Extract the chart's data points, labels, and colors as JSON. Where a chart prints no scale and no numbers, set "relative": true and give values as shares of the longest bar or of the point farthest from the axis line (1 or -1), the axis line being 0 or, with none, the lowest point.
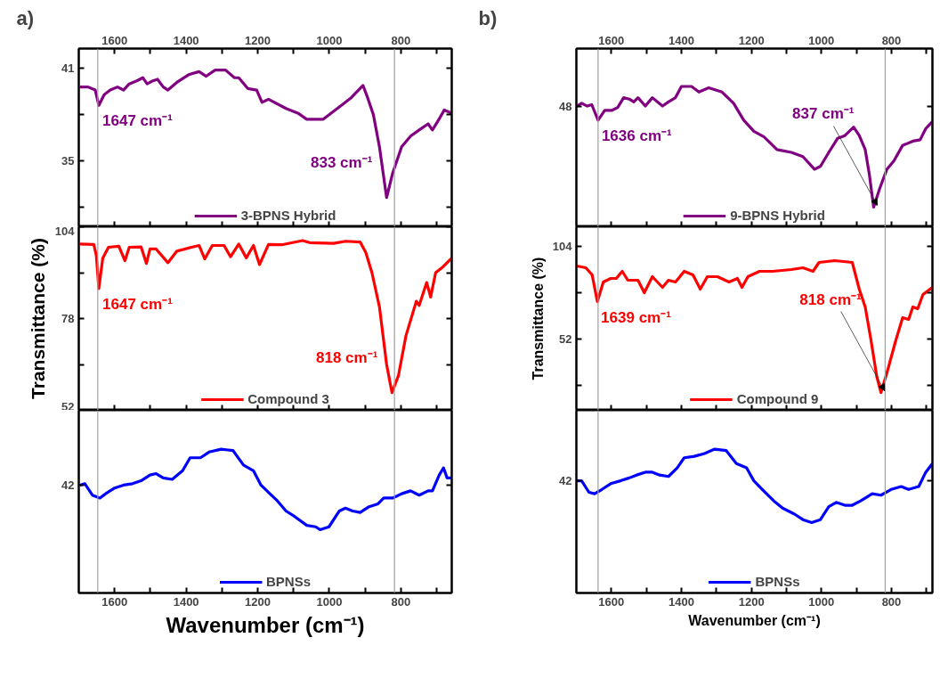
{
  "chart_data": [
    {
      "type": "line",
      "title": "a)",
      "x": [
        1697,
        1674,
        1654,
        1644,
        1629,
        1612,
        1592,
        1575,
        1559,
        1538,
        1521,
        1509,
        1493,
        1480,
        1464,
        1451,
        1426,
        1393,
        1364,
        1344,
        1319,
        1290,
        1265,
        1253,
        1228,
        1203,
        1188,
        1170,
        1121,
        1088,
        1063,
        1017,
        972,
        939,
        906,
        893,
        877,
        860,
        840,
        823,
        798,
        773,
        749,
        724,
        712,
        691,
        679,
        658
      ],
      "series": [
        {
          "name": "3-BPNS Hybrid",
          "color": "#800080",
          "values": [
            39.8,
            39.8,
            39.6,
            38.6,
            39.3,
            39.6,
            39.8,
            39.6,
            40.0,
            40.2,
            40.4,
            40.0,
            40.2,
            40.3,
            39.8,
            39.6,
            40.1,
            40.6,
            40.8,
            40.5,
            40.9,
            40.9,
            40.4,
            40.4,
            39.7,
            39.6,
            38.8,
            39.0,
            38.4,
            38.1,
            37.7,
            37.7,
            38.5,
            39.1,
            39.9,
            39.1,
            38.0,
            35.9,
            32.6,
            34.2,
            35.9,
            36.6,
            37.0,
            37.4,
            37.0,
            37.8,
            38.3,
            38.1
          ]
        }
      ],
      "xlim": [
        1700,
        658
      ],
      "ylim": [
        30.7,
        42.3
      ],
      "xticks": [
        1600,
        {
          "value": 1500,
          "label": null
        },
        1400,
        {
          "value": 1300,
          "label": null
        },
        1200,
        {
          "value": 1100,
          "label": null
        },
        1000,
        {
          "value": 900,
          "label": null
        },
        800,
        {
          "value": 700,
          "label": null
        }
      ],
      "x2lim": [
        1700,
        658
      ],
      "x2ticks": [
        1600,
        {
          "value": 1500,
          "label": null
        },
        1400,
        {
          "value": 1300,
          "label": null
        },
        1200,
        {
          "value": 1100,
          "label": null
        },
        1000,
        {
          "value": 900,
          "label": null
        },
        800,
        {
          "value": 700,
          "label": null
        }
      ],
      "yticks": [
        41,
        {
          "value": 38,
          "label": null
        },
        35,
        {
          "value": 32,
          "label": null
        }
      ],
      "tick_labels": "y",
      "legend": "bottom",
      "ref_lines": [
        {
          "axis": "x",
          "value": 1647,
          "color": "#a0a0a0"
        },
        {
          "axis": "x",
          "value": 818,
          "color": "#a0a0a0"
        }
      ],
      "annotations": [
        {
          "text": "1647 cm⁻¹",
          "x": 1644,
          "y": 38.6
        },
        {
          "text": "833 cm⁻¹",
          "x": 840,
          "y": 32.6
        }
      ]
    },
    {
      "type": "line",
      "ylabel": "Transmittance (%)",
      "x": [
        1697,
        1658,
        1651,
        1644,
        1633,
        1617,
        1588,
        1571,
        1559,
        1526,
        1511,
        1501,
        1484,
        1451,
        1426,
        1385,
        1364,
        1348,
        1327,
        1294,
        1276,
        1253,
        1232,
        1212,
        1195,
        1170,
        1133,
        1075,
        1055,
        988,
        955,
        914,
        898,
        881,
        860,
        840,
        825,
        807,
        786,
        757,
        749,
        728,
        717,
        703,
        683,
        658
      ],
      "series": [
        {
          "name": "Compound 3",
          "color": "#ff0000",
          "values": [
            99.1,
            99.0,
            95.9,
            86.5,
            95.1,
            98.2,
            98.5,
            94.4,
            98.2,
            98.3,
            93.6,
            97.7,
            97.7,
            93.8,
            97.1,
            98.2,
            98.7,
            94.9,
            98.7,
            98.7,
            95.5,
            99.1,
            95.2,
            98.7,
            93.3,
            99.0,
            98.9,
            100.1,
            99.5,
            99.3,
            99.9,
            99.7,
            96.7,
            91.0,
            81.3,
            65.0,
            57.0,
            61.8,
            73.1,
            82.9,
            81.7,
            88.2,
            84.1,
            91.0,
            92.6,
            95.1
          ]
        }
      ],
      "xlim": [
        1700,
        658
      ],
      "ylim": [
        52,
        104
      ],
      "xticks": [
        1600,
        {
          "value": 1500,
          "label": null
        },
        1400,
        {
          "value": 1300,
          "label": null
        },
        1200,
        {
          "value": 1100,
          "label": null
        },
        1000,
        {
          "value": 900,
          "label": null
        },
        800,
        {
          "value": 700,
          "label": null
        }
      ],
      "yticks": [
        104,
        {
          "value": 91,
          "label": null
        },
        78,
        {
          "value": 65,
          "label": null
        },
        52
      ],
      "tick_labels": "y",
      "legend": "bottom",
      "ref_lines": [
        {
          "axis": "x",
          "value": 1647,
          "color": "#a0a0a0"
        },
        {
          "axis": "x",
          "value": 818,
          "color": "#a0a0a0"
        }
      ],
      "annotations": [
        {
          "text": "1647 cm⁻¹",
          "x": 1644,
          "y": 86.5
        },
        {
          "text": "818 cm⁻¹",
          "x": 825,
          "y": 57.0
        }
      ]
    },
    {
      "type": "line",
      "relative": true,
      "xlabel": "Wavenumber (cm⁻¹)",
      "x": [
        1697,
        1683,
        1662,
        1641,
        1625,
        1600,
        1575,
        1550,
        1526,
        1501,
        1484,
        1464,
        1439,
        1410,
        1389,
        1360,
        1336,
        1302,
        1269,
        1240,
        1212,
        1191,
        1166,
        1145,
        1121,
        1096,
        1063,
        1038,
        1026,
        1001,
        972,
        955,
        935,
        914,
        889,
        864,
        848,
        823,
        798,
        773,
        749,
        724,
        712,
        693,
        681,
        671,
        658
      ],
      "series": [
        {
          "name": "BPNSs",
          "color": "#0000ff",
          "values": [
            0.75,
            0.76,
            0.68,
            0.66,
            0.69,
            0.73,
            0.75,
            0.76,
            0.78,
            0.82,
            0.83,
            0.8,
            0.79,
            0.85,
            0.94,
            0.94,
            0.98,
            1,
            0.99,
            0.89,
            0.85,
            0.75,
            0.69,
            0.64,
            0.57,
            0.53,
            0.47,
            0.46,
            0.44,
            0.46,
            0.57,
            0.59,
            0.57,
            0.56,
            0.6,
            0.62,
            0.66,
            0.66,
            0.69,
            0.71,
            0.68,
            0.71,
            0.71,
            0.82,
            0.87,
            0.8,
            0.8
          ]
        }
      ],
      "xlim": [
        1700,
        658
      ],
      "xticks": [
        1600,
        {
          "value": 1500,
          "label": null
        },
        1400,
        {
          "value": 1300,
          "label": null
        },
        1200,
        {
          "value": 1100,
          "label": null
        },
        1000,
        {
          "value": 900,
          "label": null
        },
        800,
        {
          "value": 700,
          "label": null
        }
      ],
      "legend": "bottom",
      "ref_lines": [
        {
          "axis": "x",
          "value": 1647,
          "color": "#a0a0a0"
        },
        {
          "axis": "x",
          "value": 818,
          "color": "#a0a0a0"
        }
      ],
      "annotations": [
        "42"
      ]
    },
    {
      "type": "line",
      "relative": true,
      "title": "b)",
      "x": [
        1698,
        1685,
        1669,
        1656,
        1638,
        1619,
        1598,
        1582,
        1565,
        1549,
        1536,
        1524,
        1503,
        1483,
        1454,
        1437,
        1417,
        1400,
        1371,
        1350,
        1322,
        1284,
        1251,
        1222,
        1193,
        1164,
        1127,
        1086,
        1053,
        1020,
        1003,
        979,
        954,
        933,
        908,
        892,
        875,
        863,
        851,
        834,
        813,
        793,
        768,
        739,
        718,
        702,
        683
      ],
      "series": [
        {
          "name": "9-BPNS Hybrid",
          "color": "#800080",
          "values": [
            0.86,
            0.88,
            0.86,
            0.87,
            0.76,
            0.83,
            0.83,
            0.85,
            0.92,
            0.91,
            0.89,
            0.92,
            0.86,
            0.92,
            0.86,
            0.89,
            0.92,
            1,
            1,
            0.96,
            0.99,
            0.96,
            0.88,
            0.76,
            0.68,
            0.64,
            0.55,
            0.53,
            0.5,
            0.41,
            0.43,
            0.53,
            0.63,
            0.65,
            0.71,
            0.65,
            0.55,
            0.37,
            0.14,
            0.27,
            0.41,
            0.47,
            0.58,
            0.61,
            0.62,
            0.7,
            0.75
          ]
        }
      ],
      "xlim": [
        1700,
        683
      ],
      "xticks": [
        1600,
        {
          "value": 1500,
          "label": null
        },
        1400,
        {
          "value": 1300,
          "label": null
        },
        1200,
        {
          "value": 1100,
          "label": null
        },
        1000,
        {
          "value": 900,
          "label": null
        },
        800,
        {
          "value": 700,
          "label": null
        }
      ],
      "x2lim": [
        1700,
        683
      ],
      "x2ticks": [
        1600,
        {
          "value": 1500,
          "label": null
        },
        1400,
        {
          "value": 1300,
          "label": null
        },
        1200,
        {
          "value": 1100,
          "label": null
        },
        1000,
        {
          "value": 900,
          "label": null
        },
        800,
        {
          "value": 700,
          "label": null
        }
      ],
      "tick_labels": "y",
      "legend": "bottom",
      "ref_lines": [
        {
          "axis": "x",
          "value": 1638,
          "color": "#a0a0a0"
        },
        {
          "axis": "x",
          "value": 818,
          "color": "#a0a0a0"
        }
      ],
      "annotations": [
        {
          "text": "1636 cm⁻¹",
          "x": 1638,
          "y": 0.76
        },
        {
          "text": "837 cm⁻¹",
          "x": 851,
          "y": 0.14
        },
        "48"
      ]
    },
    {
      "type": "line",
      "ylabel": "Transmittance (%)",
      "x": [
        1699,
        1673,
        1655,
        1640,
        1623,
        1602,
        1586,
        1569,
        1553,
        1524,
        1506,
        1483,
        1454,
        1437,
        1417,
        1392,
        1367,
        1346,
        1326,
        1297,
        1264,
        1240,
        1227,
        1210,
        1177,
        1140,
        1086,
        1053,
        1024,
        1007,
        962,
        912,
        892,
        875,
        859,
        842,
        830,
        813,
        788,
        768,
        751,
        739,
        725,
        710,
        683
      ],
      "series": [
        {
          "name": "Compound 9",
          "color": "#ff0000",
          "values": [
            93,
            92,
            88,
            73,
            84,
            86,
            86,
            90,
            85,
            85,
            78,
            87,
            81,
            85,
            84,
            90,
            88,
            80,
            87,
            87,
            84,
            86,
            81,
            87,
            90,
            90,
            91,
            92,
            90,
            95,
            96,
            95,
            80,
            70,
            52,
            31,
            22,
            33,
            51,
            64,
            63,
            70,
            69,
            77,
            81
          ]
        }
      ],
      "xlim": [
        1700,
        683
      ],
      "ylim": [
        12,
        115
      ],
      "xticks": [
        1600,
        {
          "value": 1500,
          "label": null
        },
        1400,
        {
          "value": 1300,
          "label": null
        },
        1200,
        {
          "value": 1100,
          "label": null
        },
        1000,
        {
          "value": 900,
          "label": null
        },
        800,
        {
          "value": 700,
          "label": null
        }
      ],
      "yticks": [
        104,
        {
          "value": 78,
          "label": null
        },
        52,
        {
          "value": 26,
          "label": null
        }
      ],
      "tick_labels": "y",
      "legend": "bottom",
      "ref_lines": [
        {
          "axis": "x",
          "value": 1638,
          "color": "#a0a0a0"
        },
        {
          "axis": "x",
          "value": 818,
          "color": "#a0a0a0"
        }
      ],
      "annotations": [
        {
          "text": "1639 cm⁻¹",
          "x": 1640,
          "y": 73
        },
        {
          "text": "818 cm⁻¹",
          "x": 830,
          "y": 22
        }
      ]
    },
    {
      "type": "line",
      "relative": true,
      "xlabel": "Wavenumber (cm⁻¹)",
      "x": [
        1699,
        1685,
        1664,
        1648,
        1627,
        1602,
        1574,
        1549,
        1528,
        1503,
        1483,
        1462,
        1437,
        1412,
        1392,
        1363,
        1334,
        1305,
        1272,
        1243,
        1214,
        1193,
        1169,
        1136,
        1111,
        1078,
        1053,
        1028,
        1003,
        979,
        958,
        933,
        912,
        888,
        855,
        830,
        801,
        772,
        751,
        722,
        702,
        683
      ],
      "series": [
        {
          "name": "BPNSs",
          "color": "#0000ff",
          "values": [
            0.78,
            0.78,
            0.7,
            0.69,
            0.72,
            0.76,
            0.78,
            0.8,
            0.82,
            0.84,
            0.84,
            0.82,
            0.81,
            0.87,
            0.94,
            0.95,
            0.97,
            1,
            0.99,
            0.9,
            0.87,
            0.78,
            0.72,
            0.64,
            0.59,
            0.55,
            0.51,
            0.49,
            0.51,
            0.6,
            0.63,
            0.61,
            0.61,
            0.64,
            0.69,
            0.68,
            0.72,
            0.74,
            0.72,
            0.74,
            0.84,
            0.9
          ]
        }
      ],
      "xlim": [
        1700,
        683
      ],
      "xticks": [
        1600,
        {
          "value": 1500,
          "label": null
        },
        1400,
        {
          "value": 1300,
          "label": null
        },
        1200,
        {
          "value": 1100,
          "label": null
        },
        1000,
        {
          "value": 900,
          "label": null
        },
        800,
        {
          "value": 700,
          "label": null
        }
      ],
      "legend": "bottom",
      "ref_lines": [
        {
          "axis": "x",
          "value": 1638,
          "color": "#a0a0a0"
        },
        {
          "axis": "x",
          "value": 818,
          "color": "#a0a0a0"
        }
      ],
      "annotations": [
        "42"
      ]
    }
  ]
}
